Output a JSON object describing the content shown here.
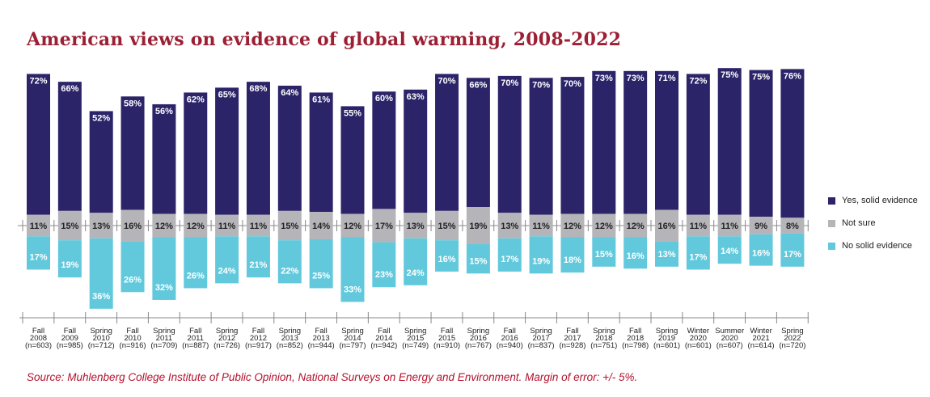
{
  "title": "American views on evidence of global warming, 2008-2022",
  "source": "Source: Muhlenberg College Institute of Public Opinion, National Surveys on Energy and Environment. Margin of error: +/- 5%.",
  "colors": {
    "yes": "#2b2469",
    "not_sure": "#b4b4b9",
    "no": "#62c9dd",
    "title": "#9c1f34"
  },
  "chart_data": {
    "type": "bar",
    "stacking": "diverging",
    "title": "American views on evidence of global warming, 2008-2022",
    "legend_position": "right",
    "categories": [
      {
        "season": "Fall",
        "year": "2008",
        "n": "(n=603)"
      },
      {
        "season": "Fall",
        "year": "2009",
        "n": "(n=985)"
      },
      {
        "season": "Spring",
        "year": "2010",
        "n": "(n=712)"
      },
      {
        "season": "Fall",
        "year": "2010",
        "n": "(n=916)"
      },
      {
        "season": "Spring",
        "year": "2011",
        "n": "(n=709)"
      },
      {
        "season": "Fall",
        "year": "2011",
        "n": "(n=887)"
      },
      {
        "season": "Spring",
        "year": "2012",
        "n": "(n=726)"
      },
      {
        "season": "Fall",
        "year": "2012",
        "n": "(n=917)"
      },
      {
        "season": "Spring",
        "year": "2013",
        "n": "(n=852)"
      },
      {
        "season": "Fall",
        "year": "2013",
        "n": "(n=944)"
      },
      {
        "season": "Spring",
        "year": "2014",
        "n": "(n=797)"
      },
      {
        "season": "Fall",
        "year": "2014",
        "n": "(n=942)"
      },
      {
        "season": "Spring",
        "year": "2015",
        "n": "(n=749)"
      },
      {
        "season": "Fall",
        "year": "2015",
        "n": "(n=910)"
      },
      {
        "season": "Spring",
        "year": "2016",
        "n": "(n=767)"
      },
      {
        "season": "Fall",
        "year": "2016",
        "n": "(n=940)"
      },
      {
        "season": "Spring",
        "year": "2017",
        "n": "(n=837)"
      },
      {
        "season": "Fall",
        "year": "2017",
        "n": "(n=928)"
      },
      {
        "season": "Spring",
        "year": "2018",
        "n": "(n=751)"
      },
      {
        "season": "Fall",
        "year": "2018",
        "n": "(n=798)"
      },
      {
        "season": "Spring",
        "year": "2019",
        "n": "(n=601)"
      },
      {
        "season": "Winter",
        "year": "2020",
        "n": "(n=601)"
      },
      {
        "season": "Summer",
        "year": "2020",
        "n": "(n=607)"
      },
      {
        "season": "Winter",
        "year": "2021",
        "n": "(n=614)"
      },
      {
        "season": "Spring",
        "year": "2022",
        "n": "(n=720)"
      }
    ],
    "series": [
      {
        "name": "Yes, solid evidence",
        "key": "yes",
        "values": [
          72,
          66,
          52,
          58,
          56,
          62,
          65,
          68,
          64,
          61,
          55,
          60,
          63,
          70,
          66,
          70,
          70,
          70,
          73,
          73,
          71,
          72,
          75,
          75,
          76
        ]
      },
      {
        "name": "Not sure",
        "key": "not_sure",
        "values": [
          11,
          15,
          13,
          16,
          12,
          12,
          11,
          11,
          15,
          14,
          12,
          17,
          13,
          15,
          19,
          13,
          11,
          12,
          12,
          12,
          16,
          11,
          11,
          9,
          8
        ]
      },
      {
        "name": "No solid evidence",
        "key": "no",
        "values": [
          17,
          19,
          36,
          26,
          32,
          26,
          24,
          21,
          22,
          25,
          33,
          23,
          24,
          16,
          15,
          17,
          19,
          18,
          15,
          16,
          13,
          17,
          14,
          16,
          17
        ]
      }
    ],
    "value_suffix": "%"
  }
}
